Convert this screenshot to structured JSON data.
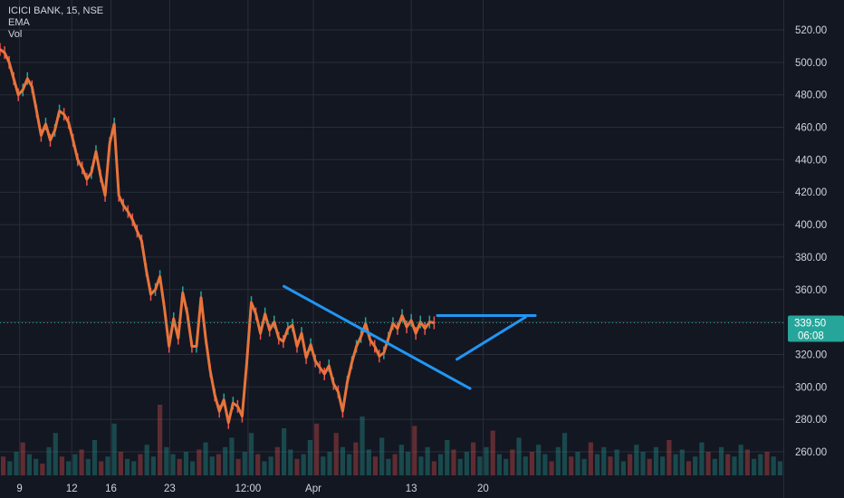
{
  "legend": {
    "symbol_line": "ICICI BANK, 15, NSE",
    "ema_label": "EMA",
    "vol_label": "Vol"
  },
  "price_tag": {
    "price": "339.50",
    "countdown": "06:08"
  },
  "colors": {
    "background": "#131722",
    "grid": "#2a2e39",
    "price_line": "#f7931a",
    "ema": "#e8743b",
    "trendline": "#2196f3",
    "up_candle": "#26a69a",
    "down_candle": "#ef5350",
    "price_tag_bg": "#26a69a",
    "price_dotted_line": "#26a69a"
  },
  "chart_data": {
    "type": "line",
    "title": "ICICI BANK, 15, NSE",
    "y_ticks": [
      "520.00",
      "500.00",
      "480.00",
      "460.00",
      "440.00",
      "420.00",
      "400.00",
      "380.00",
      "360.00",
      "340.00",
      "320.00",
      "300.00",
      "280.00",
      "260.00"
    ],
    "x_ticks": [
      "9",
      "12",
      "16",
      "23",
      "12:00",
      "Apr",
      "13",
      "20"
    ],
    "ylim": [
      240,
      530
    ],
    "grid": true,
    "x_index_range": [
      0,
      120
    ],
    "x_tick_index": [
      3,
      11,
      17,
      26,
      38,
      48,
      63,
      74
    ],
    "series": [
      {
        "name": "",
        "y": [
          508,
          506,
          500,
          490,
          480,
          483,
          490,
          485,
          470,
          455,
          462,
          452,
          458,
          470,
          468,
          463,
          452,
          440,
          435,
          428,
          432,
          445,
          430,
          418,
          450,
          462,
          418,
          412,
          408,
          403,
          396,
          390,
          372,
          357,
          360,
          368,
          348,
          325,
          342,
          330,
          358,
          345,
          325,
          325,
          355,
          330,
          310,
          295,
          285,
          292,
          278,
          290,
          288,
          282,
          315,
          352,
          345,
          333,
          345,
          335,
          340,
          330,
          328,
          336,
          338,
          325,
          333,
          318,
          326,
          316,
          312,
          308,
          313,
          302,
          297,
          285,
          303,
          315,
          325,
          331,
          339,
          329,
          325,
          319,
          321,
          330,
          339,
          336,
          344,
          337,
          341,
          333,
          340,
          336,
          340,
          339.5
        ],
        "x_start": 0,
        "x_step": 0.7
      }
    ],
    "trendlines": [
      {
        "from": [
          43.5,
          362
        ],
        "to": [
          72,
          299
        ]
      },
      {
        "from": [
          67,
          344
        ],
        "to": [
          82,
          344
        ]
      },
      {
        "from": [
          70,
          317
        ],
        "to": [
          80.5,
          343
        ]
      }
    ],
    "volume": [
      8,
      6,
      10,
      14,
      9,
      7,
      5,
      12,
      18,
      8,
      6,
      9,
      11,
      7,
      15,
      6,
      8,
      22,
      10,
      7,
      6,
      9,
      13,
      8,
      30,
      12,
      9,
      7,
      10,
      6,
      11,
      14,
      8,
      9,
      12,
      16,
      7,
      10,
      18,
      9,
      6,
      8,
      12,
      20,
      11,
      7,
      9,
      15,
      22,
      8,
      10,
      18,
      12,
      9,
      14,
      25,
      11,
      8,
      16,
      7,
      9,
      13,
      10,
      21,
      8,
      12,
      6,
      9,
      15,
      11,
      7,
      10,
      14,
      8,
      12,
      19,
      9,
      7,
      11,
      16,
      8,
      10,
      13,
      9,
      6,
      12,
      18,
      8,
      10,
      7,
      14,
      9,
      12,
      8,
      11,
      6,
      9,
      13,
      10,
      7,
      12,
      8,
      15,
      9,
      11,
      6,
      8,
      14,
      10,
      7,
      12,
      9,
      8,
      13,
      11,
      7,
      9,
      10,
      8,
      6
    ]
  }
}
